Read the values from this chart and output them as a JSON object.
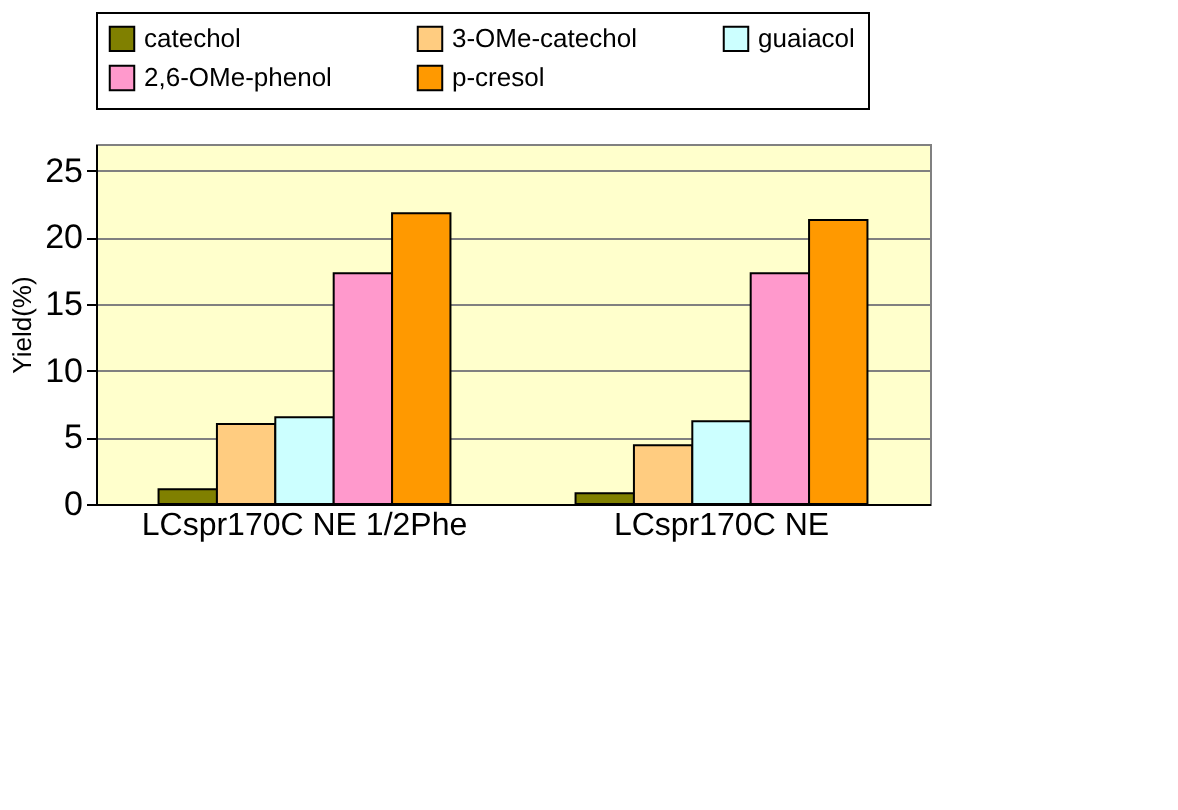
{
  "chart_data": {
    "type": "bar",
    "ylabel": "Yield(%)",
    "categories": [
      "LCspr170C NE 1/2Phe",
      "LCspr170C NE"
    ],
    "series": [
      {
        "name": "catechol",
        "color": "#808000",
        "values": [
          1.1,
          0.8
        ]
      },
      {
        "name": "3-OMe-catechol",
        "color": "#ffcc80",
        "values": [
          6.0,
          4.4
        ]
      },
      {
        "name": "guaiacol",
        "color": "#ccffff",
        "values": [
          6.5,
          6.2
        ]
      },
      {
        "name": "2,6-OMe-phenol",
        "color": "#ff99cc",
        "values": [
          17.3,
          17.3
        ]
      },
      {
        "name": "p-cresol",
        "color": "#ff9900",
        "values": [
          21.8,
          21.3
        ]
      }
    ],
    "ylim": [
      0,
      27
    ],
    "yticks": [
      0,
      5,
      10,
      15,
      20,
      25
    ],
    "grid": "y",
    "legend": "top"
  }
}
